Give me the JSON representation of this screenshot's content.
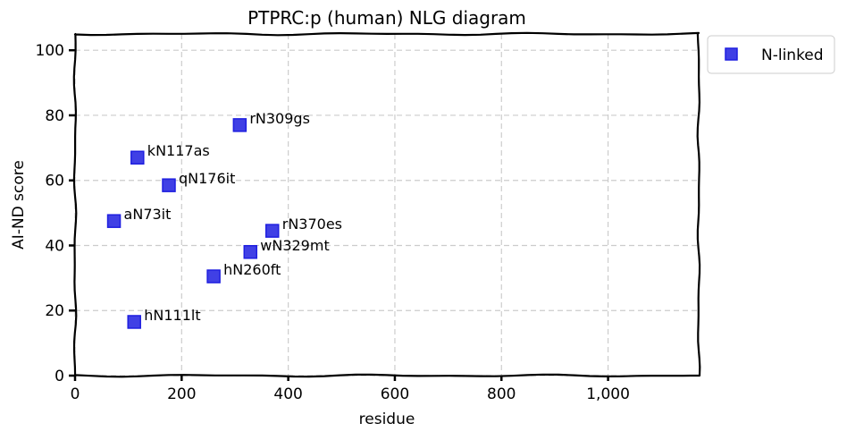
{
  "chart_data": {
    "type": "scatter",
    "title": "PTPRC:p (human) NLG diagram",
    "xlabel": "residue",
    "ylabel": "AI-ND score",
    "xlim": [
      0,
      1170
    ],
    "ylim": [
      0,
      105
    ],
    "x_ticks": [
      0,
      200,
      400,
      600,
      800,
      1000
    ],
    "x_tick_labels": [
      "0",
      "200",
      "400",
      "600",
      "800",
      "1,000"
    ],
    "y_ticks": [
      0,
      20,
      40,
      60,
      80,
      100
    ],
    "y_tick_labels": [
      "0",
      "20",
      "40",
      "60",
      "80",
      "100"
    ],
    "grid": true,
    "legend_position": "outside-top-right",
    "series": [
      {
        "name": "N-linked",
        "color": "#1f1fe0",
        "marker": "square",
        "points": [
          {
            "x": 309,
            "y": 77,
            "label": "rN309gs"
          },
          {
            "x": 117,
            "y": 67,
            "label": "kN117as"
          },
          {
            "x": 176,
            "y": 58.5,
            "label": "qN176it"
          },
          {
            "x": 73,
            "y": 47.5,
            "label": "aN73it"
          },
          {
            "x": 370,
            "y": 44.5,
            "label": "rN370es"
          },
          {
            "x": 329,
            "y": 38,
            "label": "wN329mt"
          },
          {
            "x": 260,
            "y": 30.5,
            "label": "hN260ft"
          },
          {
            "x": 111,
            "y": 16.5,
            "label": "hN111lt"
          }
        ]
      }
    ]
  }
}
